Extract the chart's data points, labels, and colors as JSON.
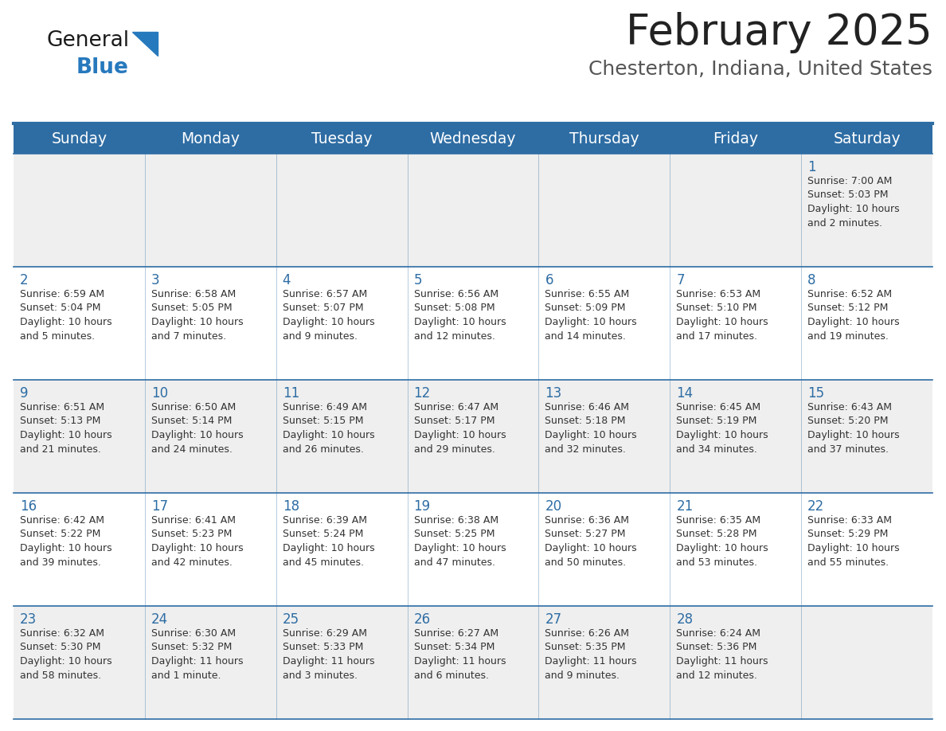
{
  "title": "February 2025",
  "subtitle": "Chesterton, Indiana, United States",
  "header_bg": "#2e6da4",
  "header_text": "#ffffff",
  "cell_bg_light": "#efefef",
  "cell_bg_white": "#ffffff",
  "day_headers": [
    "Sunday",
    "Monday",
    "Tuesday",
    "Wednesday",
    "Thursday",
    "Friday",
    "Saturday"
  ],
  "title_color": "#222222",
  "subtitle_color": "#555555",
  "day_number_color": "#2e6da4",
  "info_color": "#333333",
  "line_color": "#2e6da4",
  "logo_general_color": "#1a1a1a",
  "logo_blue_color": "#2779bd",
  "weeks": [
    [
      {
        "day": null,
        "info": null
      },
      {
        "day": null,
        "info": null
      },
      {
        "day": null,
        "info": null
      },
      {
        "day": null,
        "info": null
      },
      {
        "day": null,
        "info": null
      },
      {
        "day": null,
        "info": null
      },
      {
        "day": 1,
        "info": "Sunrise: 7:00 AM\nSunset: 5:03 PM\nDaylight: 10 hours\nand 2 minutes."
      }
    ],
    [
      {
        "day": 2,
        "info": "Sunrise: 6:59 AM\nSunset: 5:04 PM\nDaylight: 10 hours\nand 5 minutes."
      },
      {
        "day": 3,
        "info": "Sunrise: 6:58 AM\nSunset: 5:05 PM\nDaylight: 10 hours\nand 7 minutes."
      },
      {
        "day": 4,
        "info": "Sunrise: 6:57 AM\nSunset: 5:07 PM\nDaylight: 10 hours\nand 9 minutes."
      },
      {
        "day": 5,
        "info": "Sunrise: 6:56 AM\nSunset: 5:08 PM\nDaylight: 10 hours\nand 12 minutes."
      },
      {
        "day": 6,
        "info": "Sunrise: 6:55 AM\nSunset: 5:09 PM\nDaylight: 10 hours\nand 14 minutes."
      },
      {
        "day": 7,
        "info": "Sunrise: 6:53 AM\nSunset: 5:10 PM\nDaylight: 10 hours\nand 17 minutes."
      },
      {
        "day": 8,
        "info": "Sunrise: 6:52 AM\nSunset: 5:12 PM\nDaylight: 10 hours\nand 19 minutes."
      }
    ],
    [
      {
        "day": 9,
        "info": "Sunrise: 6:51 AM\nSunset: 5:13 PM\nDaylight: 10 hours\nand 21 minutes."
      },
      {
        "day": 10,
        "info": "Sunrise: 6:50 AM\nSunset: 5:14 PM\nDaylight: 10 hours\nand 24 minutes."
      },
      {
        "day": 11,
        "info": "Sunrise: 6:49 AM\nSunset: 5:15 PM\nDaylight: 10 hours\nand 26 minutes."
      },
      {
        "day": 12,
        "info": "Sunrise: 6:47 AM\nSunset: 5:17 PM\nDaylight: 10 hours\nand 29 minutes."
      },
      {
        "day": 13,
        "info": "Sunrise: 6:46 AM\nSunset: 5:18 PM\nDaylight: 10 hours\nand 32 minutes."
      },
      {
        "day": 14,
        "info": "Sunrise: 6:45 AM\nSunset: 5:19 PM\nDaylight: 10 hours\nand 34 minutes."
      },
      {
        "day": 15,
        "info": "Sunrise: 6:43 AM\nSunset: 5:20 PM\nDaylight: 10 hours\nand 37 minutes."
      }
    ],
    [
      {
        "day": 16,
        "info": "Sunrise: 6:42 AM\nSunset: 5:22 PM\nDaylight: 10 hours\nand 39 minutes."
      },
      {
        "day": 17,
        "info": "Sunrise: 6:41 AM\nSunset: 5:23 PM\nDaylight: 10 hours\nand 42 minutes."
      },
      {
        "day": 18,
        "info": "Sunrise: 6:39 AM\nSunset: 5:24 PM\nDaylight: 10 hours\nand 45 minutes."
      },
      {
        "day": 19,
        "info": "Sunrise: 6:38 AM\nSunset: 5:25 PM\nDaylight: 10 hours\nand 47 minutes."
      },
      {
        "day": 20,
        "info": "Sunrise: 6:36 AM\nSunset: 5:27 PM\nDaylight: 10 hours\nand 50 minutes."
      },
      {
        "day": 21,
        "info": "Sunrise: 6:35 AM\nSunset: 5:28 PM\nDaylight: 10 hours\nand 53 minutes."
      },
      {
        "day": 22,
        "info": "Sunrise: 6:33 AM\nSunset: 5:29 PM\nDaylight: 10 hours\nand 55 minutes."
      }
    ],
    [
      {
        "day": 23,
        "info": "Sunrise: 6:32 AM\nSunset: 5:30 PM\nDaylight: 10 hours\nand 58 minutes."
      },
      {
        "day": 24,
        "info": "Sunrise: 6:30 AM\nSunset: 5:32 PM\nDaylight: 11 hours\nand 1 minute."
      },
      {
        "day": 25,
        "info": "Sunrise: 6:29 AM\nSunset: 5:33 PM\nDaylight: 11 hours\nand 3 minutes."
      },
      {
        "day": 26,
        "info": "Sunrise: 6:27 AM\nSunset: 5:34 PM\nDaylight: 11 hours\nand 6 minutes."
      },
      {
        "day": 27,
        "info": "Sunrise: 6:26 AM\nSunset: 5:35 PM\nDaylight: 11 hours\nand 9 minutes."
      },
      {
        "day": 28,
        "info": "Sunrise: 6:24 AM\nSunset: 5:36 PM\nDaylight: 11 hours\nand 12 minutes."
      },
      {
        "day": null,
        "info": null
      }
    ]
  ]
}
